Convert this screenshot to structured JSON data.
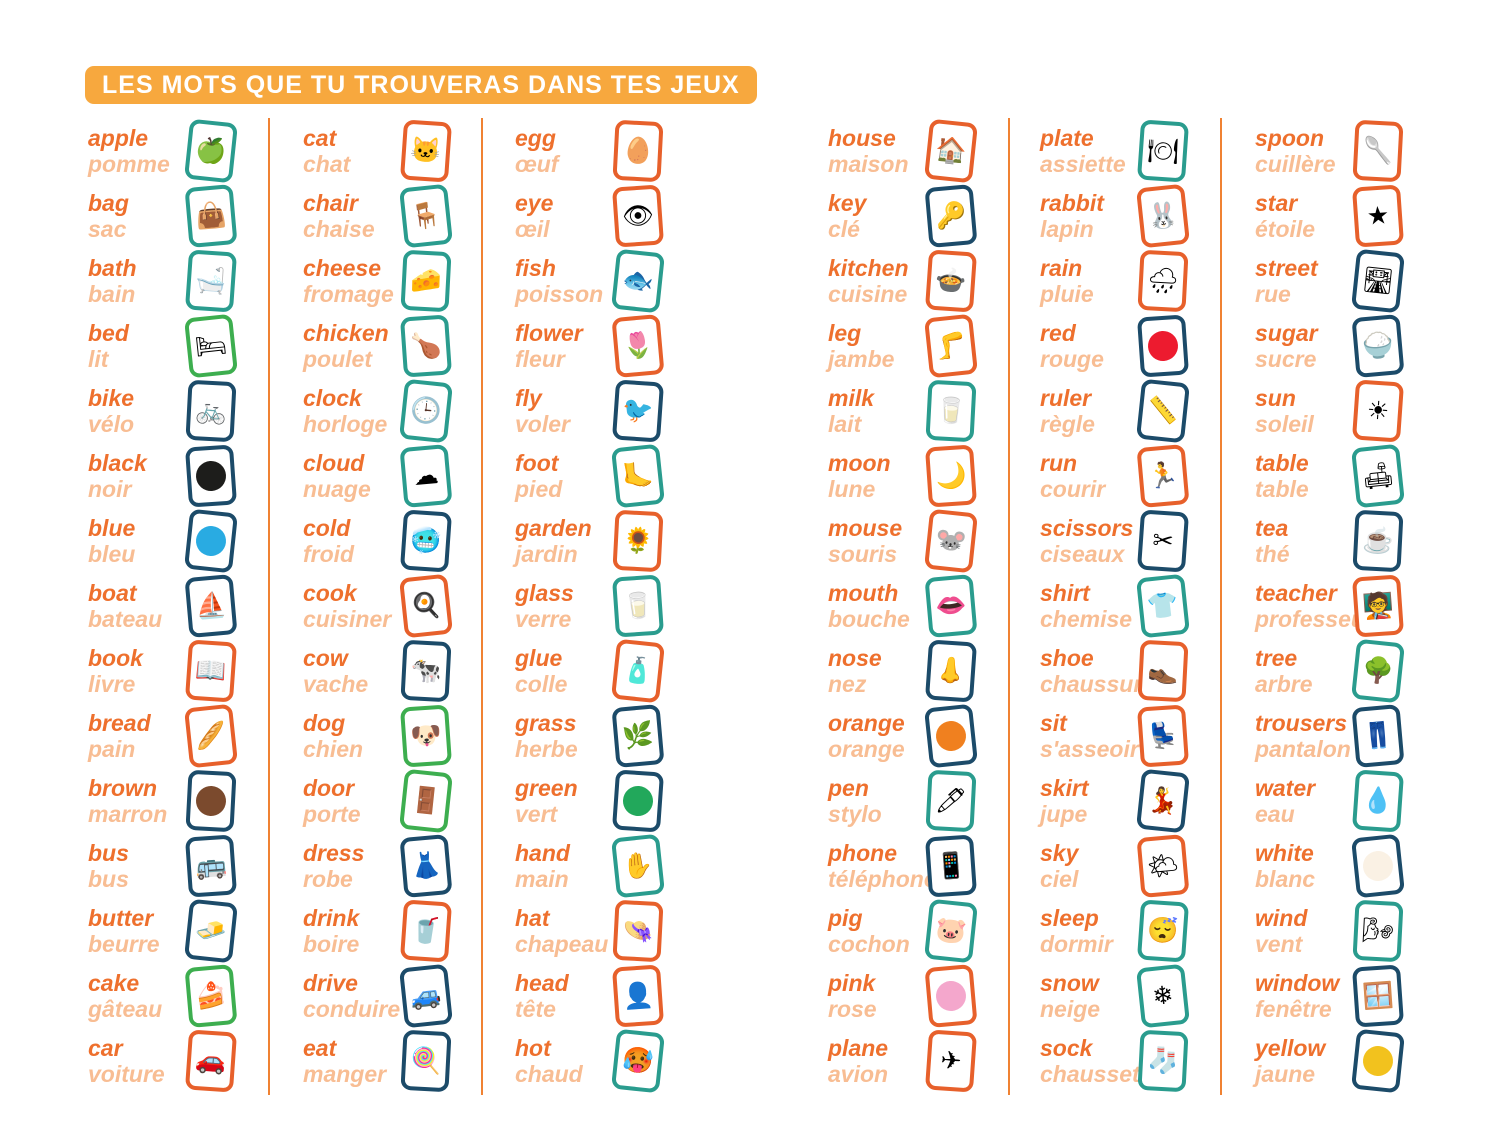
{
  "title": "LES MOTS QUE TU TROUVERAS DANS TES JEUX",
  "colors": {
    "title_bg": "#F7A83E",
    "english_text": "#EE702D",
    "french_text": "#F8BD93",
    "divider": "#F08233",
    "borders": {
      "teal": "#2A9C8E",
      "green": "#3DAE4F",
      "navy": "#1C4B69",
      "orange": "#E7602B"
    }
  },
  "swatch_colors": {
    "black": "#1D1D1B",
    "blue": "#29ABE2",
    "brown": "#7B4A2D",
    "green": "#22A85B",
    "orange": "#F0801F",
    "pink": "#F4A7CC",
    "red": "#ED1B2F",
    "white": "#FAF1E4",
    "yellow": "#F2C21E"
  },
  "columns": [
    {
      "entries": [
        {
          "en": "apple",
          "fr": "pomme",
          "border": "teal",
          "icon": "🍏",
          "icon_name": "apple-icon"
        },
        {
          "en": "bag",
          "fr": "sac",
          "border": "teal",
          "icon": "👜",
          "icon_name": "bag-icon"
        },
        {
          "en": "bath",
          "fr": "bain",
          "border": "teal",
          "icon": "🛁",
          "icon_name": "bathtub-icon"
        },
        {
          "en": "bed",
          "fr": "lit",
          "border": "green",
          "icon": "🛏",
          "icon_name": "bed-icon"
        },
        {
          "en": "bike",
          "fr": "vélo",
          "border": "navy",
          "icon": "🚲",
          "icon_name": "bicycle-icon"
        },
        {
          "en": "black",
          "fr": "noir",
          "border": "navy",
          "swatch": "black",
          "icon_name": "black-color-swatch"
        },
        {
          "en": "blue",
          "fr": "bleu",
          "border": "navy",
          "swatch": "blue",
          "icon_name": "blue-color-swatch"
        },
        {
          "en": "boat",
          "fr": "bateau",
          "border": "navy",
          "icon": "⛵",
          "icon_name": "sailboat-icon"
        },
        {
          "en": "book",
          "fr": "livre",
          "border": "orange",
          "icon": "📖",
          "icon_name": "book-icon"
        },
        {
          "en": "bread",
          "fr": "pain",
          "border": "orange",
          "icon": "🥖",
          "icon_name": "baguette-icon"
        },
        {
          "en": "brown",
          "fr": "marron",
          "border": "navy",
          "swatch": "brown",
          "icon_name": "brown-color-swatch"
        },
        {
          "en": "bus",
          "fr": "bus",
          "border": "navy",
          "icon": "🚌",
          "icon_name": "bus-icon"
        },
        {
          "en": "butter",
          "fr": "beurre",
          "border": "navy",
          "icon": "🧈",
          "icon_name": "butter-icon"
        },
        {
          "en": "cake",
          "fr": "gâteau",
          "border": "green",
          "icon": "🍰",
          "icon_name": "cake-icon"
        },
        {
          "en": "car",
          "fr": "voiture",
          "border": "orange",
          "icon": "🚗",
          "icon_name": "car-icon"
        }
      ]
    },
    {
      "entries": [
        {
          "en": "cat",
          "fr": "chat",
          "border": "orange",
          "icon": "🐱",
          "icon_name": "cat-icon"
        },
        {
          "en": "chair",
          "fr": "chaise",
          "border": "teal",
          "icon": "🪑",
          "icon_name": "chair-icon"
        },
        {
          "en": "cheese",
          "fr": "fromage",
          "border": "teal",
          "icon": "🧀",
          "icon_name": "cheese-icon"
        },
        {
          "en": "chicken",
          "fr": "poulet",
          "border": "teal",
          "icon": "🍗",
          "icon_name": "chicken-icon"
        },
        {
          "en": "clock",
          "fr": "horloge",
          "border": "teal",
          "icon": "🕒",
          "icon_name": "clock-icon"
        },
        {
          "en": "cloud",
          "fr": "nuage",
          "border": "teal",
          "icon": "☁",
          "icon_name": "cloud-icon"
        },
        {
          "en": "cold",
          "fr": "froid",
          "border": "navy",
          "icon": "🥶",
          "icon_name": "cold-child-icon"
        },
        {
          "en": "cook",
          "fr": "cuisiner",
          "border": "orange",
          "icon": "🍳",
          "icon_name": "cooking-pot-icon"
        },
        {
          "en": "cow",
          "fr": "vache",
          "border": "navy",
          "icon": "🐄",
          "icon_name": "cow-icon"
        },
        {
          "en": "dog",
          "fr": "chien",
          "border": "green",
          "icon": "🐶",
          "icon_name": "dog-icon"
        },
        {
          "en": "door",
          "fr": "porte",
          "border": "green",
          "icon": "🚪",
          "icon_name": "door-icon"
        },
        {
          "en": "dress",
          "fr": "robe",
          "border": "navy",
          "icon": "👗",
          "icon_name": "dress-icon"
        },
        {
          "en": "drink",
          "fr": "boire",
          "border": "orange",
          "icon": "🥤",
          "icon_name": "drinking-boy-icon"
        },
        {
          "en": "drive",
          "fr": "conduire",
          "border": "navy",
          "icon": "🚙",
          "icon_name": "driving-icon"
        },
        {
          "en": "eat",
          "fr": "manger",
          "border": "navy",
          "icon": "🍭",
          "icon_name": "eating-girl-icon"
        }
      ]
    },
    {
      "entries": [
        {
          "en": "egg",
          "fr": "œuf",
          "border": "orange",
          "icon": "🥚",
          "icon_name": "egg-icon"
        },
        {
          "en": "eye",
          "fr": "œil",
          "border": "orange",
          "icon": "👁",
          "icon_name": "eye-icon"
        },
        {
          "en": "fish",
          "fr": "poisson",
          "border": "teal",
          "icon": "🐟",
          "icon_name": "fish-icon"
        },
        {
          "en": "flower",
          "fr": "fleur",
          "border": "orange",
          "icon": "🌷",
          "icon_name": "tulip-icon"
        },
        {
          "en": "fly",
          "fr": "voler",
          "border": "navy",
          "icon": "🐦",
          "icon_name": "flying-bird-icon"
        },
        {
          "en": "foot",
          "fr": "pied",
          "border": "teal",
          "icon": "🦶",
          "icon_name": "foot-icon"
        },
        {
          "en": "garden",
          "fr": "jardin",
          "border": "orange",
          "icon": "🌻",
          "icon_name": "garden-icon"
        },
        {
          "en": "glass",
          "fr": "verre",
          "border": "teal",
          "icon": "🥛",
          "icon_name": "glass-icon"
        },
        {
          "en": "glue",
          "fr": "colle",
          "border": "orange",
          "icon": "🧴",
          "icon_name": "glue-bottle-icon"
        },
        {
          "en": "grass",
          "fr": "herbe",
          "border": "navy",
          "icon": "🌿",
          "icon_name": "grass-icon"
        },
        {
          "en": "green",
          "fr": "vert",
          "border": "navy",
          "swatch": "green",
          "icon_name": "green-color-swatch"
        },
        {
          "en": "hand",
          "fr": "main",
          "border": "teal",
          "icon": "✋",
          "icon_name": "hand-icon"
        },
        {
          "en": "hat",
          "fr": "chapeau",
          "border": "orange",
          "icon": "👒",
          "icon_name": "hat-icon"
        },
        {
          "en": "head",
          "fr": "tête",
          "border": "orange",
          "icon": "👤",
          "icon_name": "head-icon"
        },
        {
          "en": "hot",
          "fr": "chaud",
          "border": "teal",
          "icon": "🥵",
          "icon_name": "hot-thermometer-icon"
        }
      ]
    },
    {
      "entries": [
        {
          "en": "house",
          "fr": "maison",
          "border": "orange",
          "icon": "🏠",
          "icon_name": "house-icon"
        },
        {
          "en": "key",
          "fr": "clé",
          "border": "navy",
          "icon": "🔑",
          "icon_name": "key-icon"
        },
        {
          "en": "kitchen",
          "fr": "cuisine",
          "border": "orange",
          "icon": "🍲",
          "icon_name": "kitchen-icon"
        },
        {
          "en": "leg",
          "fr": "jambe",
          "border": "orange",
          "icon": "🦵",
          "icon_name": "leg-icon"
        },
        {
          "en": "milk",
          "fr": "lait",
          "border": "teal",
          "icon": "🥛",
          "icon_name": "milk-bottle-icon"
        },
        {
          "en": "moon",
          "fr": "lune",
          "border": "orange",
          "icon": "🌙",
          "icon_name": "crescent-moon-icon"
        },
        {
          "en": "mouse",
          "fr": "souris",
          "border": "orange",
          "icon": "🐭",
          "icon_name": "mouse-icon"
        },
        {
          "en": "mouth",
          "fr": "bouche",
          "border": "teal",
          "icon": "👄",
          "icon_name": "mouth-icon"
        },
        {
          "en": "nose",
          "fr": "nez",
          "border": "navy",
          "icon": "👃",
          "icon_name": "nose-icon"
        },
        {
          "en": "orange",
          "fr": "orange",
          "border": "navy",
          "swatch": "orange",
          "icon_name": "orange-color-swatch"
        },
        {
          "en": "pen",
          "fr": "stylo",
          "border": "teal",
          "icon": "🖊",
          "icon_name": "pen-icon"
        },
        {
          "en": "phone",
          "fr": "téléphone",
          "border": "navy",
          "icon": "📱",
          "icon_name": "phone-icon"
        },
        {
          "en": "pig",
          "fr": "cochon",
          "border": "teal",
          "icon": "🐷",
          "icon_name": "pig-icon"
        },
        {
          "en": "pink",
          "fr": "rose",
          "border": "orange",
          "swatch": "pink",
          "icon_name": "pink-color-swatch"
        },
        {
          "en": "plane",
          "fr": "avion",
          "border": "orange",
          "icon": "✈",
          "icon_name": "plane-icon"
        }
      ]
    },
    {
      "entries": [
        {
          "en": "plate",
          "fr": "assiette",
          "border": "teal",
          "icon": "🍽",
          "icon_name": "plate-icon"
        },
        {
          "en": "rabbit",
          "fr": "lapin",
          "border": "orange",
          "icon": "🐰",
          "icon_name": "rabbit-icon"
        },
        {
          "en": "rain",
          "fr": "pluie",
          "border": "orange",
          "icon": "🌧",
          "icon_name": "rain-cloud-icon"
        },
        {
          "en": "red",
          "fr": "rouge",
          "border": "navy",
          "swatch": "red",
          "icon_name": "red-color-swatch"
        },
        {
          "en": "ruler",
          "fr": "règle",
          "border": "navy",
          "icon": "📏",
          "icon_name": "ruler-icon"
        },
        {
          "en": "run",
          "fr": "courir",
          "border": "orange",
          "icon": "🏃",
          "icon_name": "running-boy-icon"
        },
        {
          "en": "scissors",
          "fr": "ciseaux",
          "border": "navy",
          "icon": "✂",
          "icon_name": "scissors-icon"
        },
        {
          "en": "shirt",
          "fr": "chemise",
          "border": "teal",
          "icon": "👕",
          "icon_name": "shirt-icon"
        },
        {
          "en": "shoe",
          "fr": "chaussure",
          "border": "orange",
          "icon": "👞",
          "icon_name": "shoe-icon"
        },
        {
          "en": "sit",
          "fr": "s'asseoir",
          "border": "orange",
          "icon": "💺",
          "icon_name": "sitting-person-icon"
        },
        {
          "en": "skirt",
          "fr": "jupe",
          "border": "navy",
          "icon": "💃",
          "icon_name": "skirt-icon"
        },
        {
          "en": "sky",
          "fr": "ciel",
          "border": "orange",
          "icon": "🌤",
          "icon_name": "sky-icon"
        },
        {
          "en": "sleep",
          "fr": "dormir",
          "border": "teal",
          "icon": "😴",
          "icon_name": "sleeping-person-icon"
        },
        {
          "en": "snow",
          "fr": "neige",
          "border": "teal",
          "icon": "❄",
          "icon_name": "snow-icon"
        },
        {
          "en": "sock",
          "fr": "chaussette",
          "border": "teal",
          "icon": "🧦",
          "icon_name": "sock-icon"
        }
      ]
    },
    {
      "entries": [
        {
          "en": "spoon",
          "fr": "cuillère",
          "border": "orange",
          "icon": "🥄",
          "icon_name": "spoon-icon"
        },
        {
          "en": "star",
          "fr": "étoile",
          "border": "orange",
          "icon": "★",
          "icon_name": "star-icon"
        },
        {
          "en": "street",
          "fr": "rue",
          "border": "navy",
          "icon": "🛣",
          "icon_name": "street-icon"
        },
        {
          "en": "sugar",
          "fr": "sucre",
          "border": "navy",
          "icon": "🍚",
          "icon_name": "sugar-bowl-icon"
        },
        {
          "en": "sun",
          "fr": "soleil",
          "border": "orange",
          "icon": "☀",
          "icon_name": "sun-icon"
        },
        {
          "en": "table",
          "fr": "table",
          "border": "teal",
          "icon": "🛋",
          "icon_name": "table-icon"
        },
        {
          "en": "tea",
          "fr": "thé",
          "border": "navy",
          "icon": "☕",
          "icon_name": "teacup-icon"
        },
        {
          "en": "teacher",
          "fr": "professeur",
          "border": "orange",
          "icon": "🧑‍🏫",
          "icon_name": "teacher-icon"
        },
        {
          "en": "tree",
          "fr": "arbre",
          "border": "teal",
          "icon": "🌳",
          "icon_name": "tree-icon"
        },
        {
          "en": "trousers",
          "fr": "pantalon",
          "border": "navy",
          "icon": "👖",
          "icon_name": "trousers-icon"
        },
        {
          "en": "water",
          "fr": "eau",
          "border": "teal",
          "icon": "💧",
          "icon_name": "water-bottle-icon"
        },
        {
          "en": "white",
          "fr": "blanc",
          "border": "navy",
          "swatch": "white",
          "icon_name": "white-color-swatch"
        },
        {
          "en": "wind",
          "fr": "vent",
          "border": "teal",
          "icon": "🌬",
          "icon_name": "wind-icon"
        },
        {
          "en": "window",
          "fr": "fenêtre",
          "border": "navy",
          "icon": "🪟",
          "icon_name": "window-icon"
        },
        {
          "en": "yellow",
          "fr": "jaune",
          "border": "navy",
          "swatch": "yellow",
          "icon_name": "yellow-color-swatch"
        }
      ]
    }
  ]
}
